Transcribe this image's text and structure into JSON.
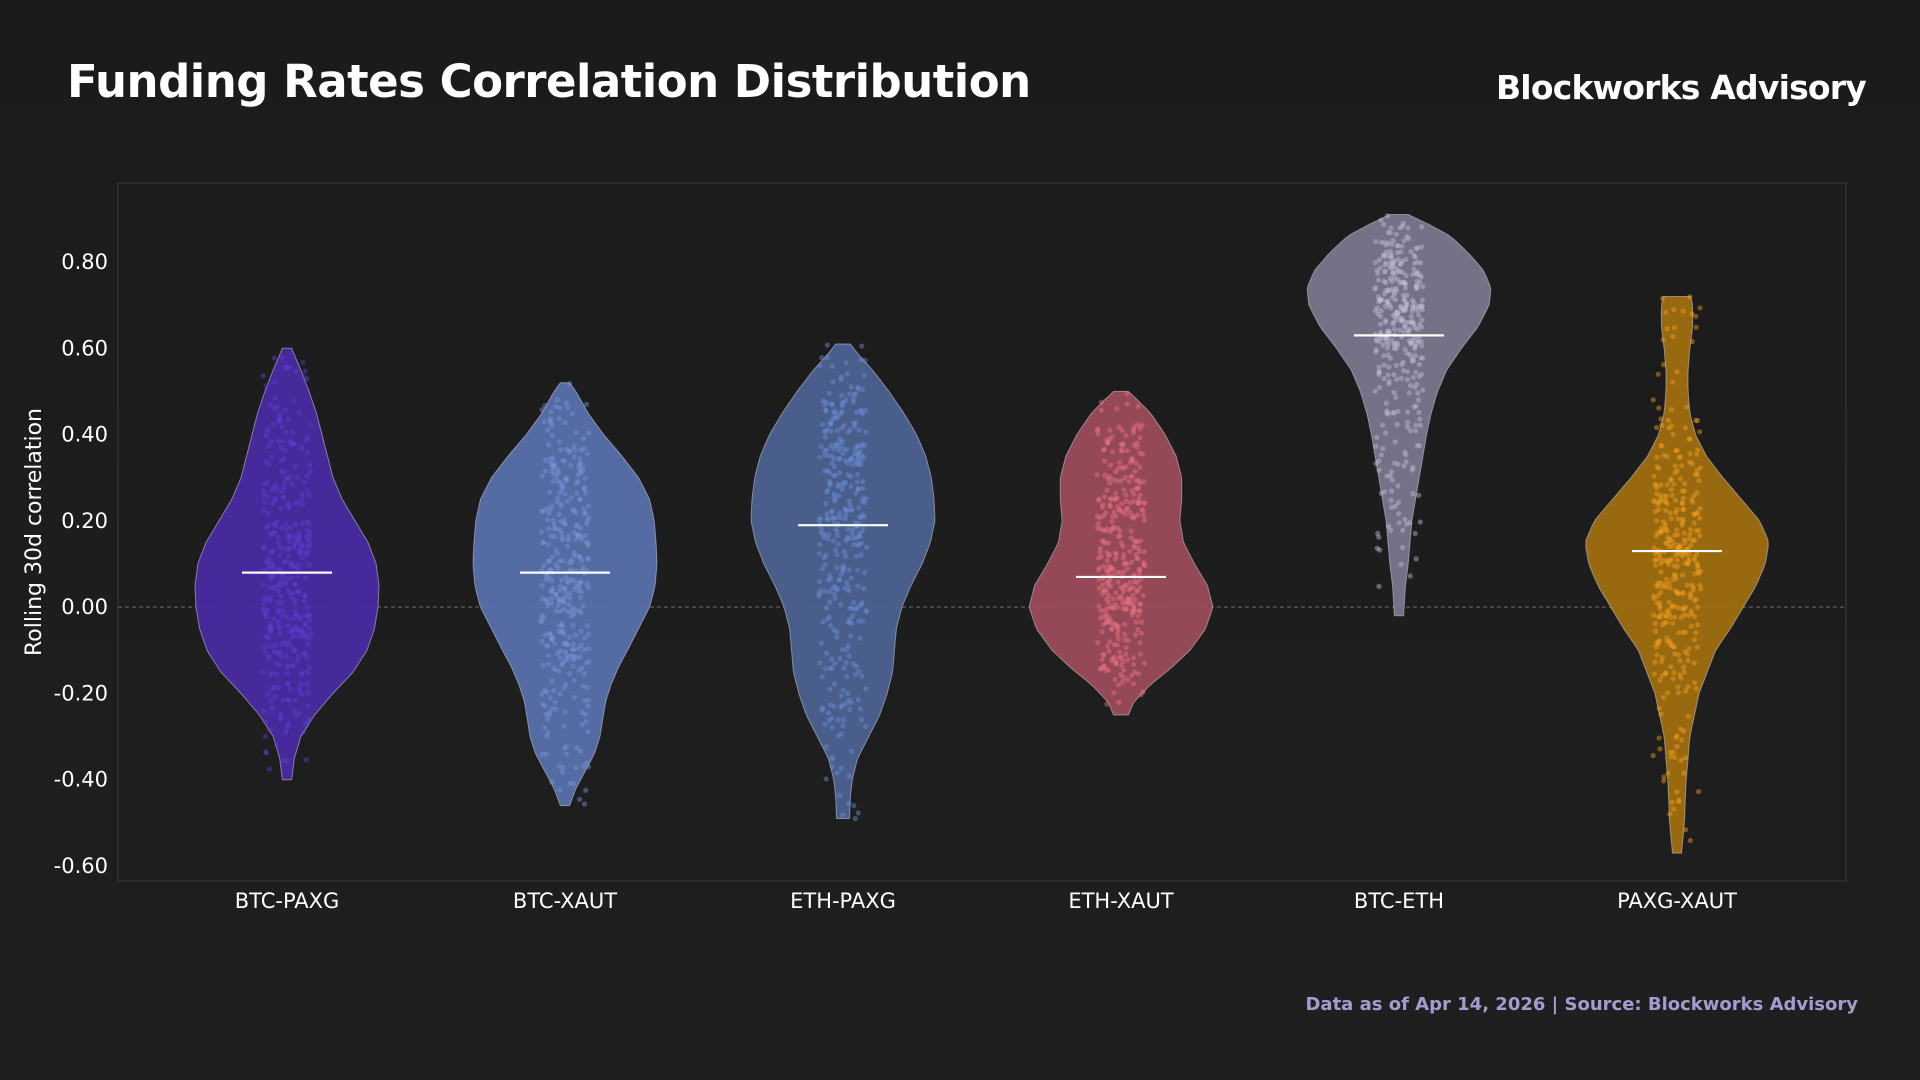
{
  "header": {
    "title": "Funding Rates Correlation Distribution",
    "brand": "Blockworks Advisory"
  },
  "footer": {
    "source": "Data as of Apr 14, 2026 | Source: Blockworks Advisory"
  },
  "chart_data": {
    "type": "violin",
    "title": "Funding Rates Correlation Distribution",
    "xlabel": "",
    "ylabel": "Rolling 30d correlation",
    "ylim": [
      -0.64,
      0.98
    ],
    "yticks": [
      0.8,
      0.6,
      0.4,
      0.2,
      0.0,
      -0.2,
      -0.4,
      -0.6
    ],
    "ytick_labels": [
      "0.80",
      "0.60",
      "0.40",
      "0.20",
      "0.00",
      "-0.20",
      "-0.40",
      "-0.60"
    ],
    "reference_line": 0.0,
    "categories": [
      "BTC-PAXG",
      "BTC-XAUT",
      "ETH-PAXG",
      "ETH-XAUT",
      "BTC-ETH",
      "PAXG-XAUT"
    ],
    "series": [
      {
        "name": "BTC-PAXG",
        "color": "#4a2ba6",
        "point_color": "#5a3fd0",
        "min": -0.4,
        "max": 0.6,
        "median": 0.08,
        "density": [
          [
            -0.4,
            0.05
          ],
          [
            -0.35,
            0.08
          ],
          [
            -0.3,
            0.15
          ],
          [
            -0.25,
            0.3
          ],
          [
            -0.2,
            0.5
          ],
          [
            -0.15,
            0.72
          ],
          [
            -0.1,
            0.87
          ],
          [
            -0.05,
            0.95
          ],
          [
            0.0,
            0.99
          ],
          [
            0.05,
            1.0
          ],
          [
            0.1,
            0.97
          ],
          [
            0.15,
            0.88
          ],
          [
            0.2,
            0.74
          ],
          [
            0.25,
            0.6
          ],
          [
            0.3,
            0.5
          ],
          [
            0.35,
            0.44
          ],
          [
            0.4,
            0.38
          ],
          [
            0.45,
            0.32
          ],
          [
            0.5,
            0.24
          ],
          [
            0.55,
            0.15
          ],
          [
            0.6,
            0.05
          ]
        ]
      },
      {
        "name": "BTC-XAUT",
        "color": "#5a72b0",
        "point_color": "#7896d8",
        "min": -0.46,
        "max": 0.52,
        "median": 0.08,
        "density": [
          [
            -0.46,
            0.05
          ],
          [
            -0.42,
            0.12
          ],
          [
            -0.38,
            0.22
          ],
          [
            -0.34,
            0.32
          ],
          [
            -0.3,
            0.38
          ],
          [
            -0.26,
            0.41
          ],
          [
            -0.22,
            0.44
          ],
          [
            -0.18,
            0.5
          ],
          [
            -0.14,
            0.58
          ],
          [
            -0.1,
            0.68
          ],
          [
            -0.05,
            0.8
          ],
          [
            0.0,
            0.92
          ],
          [
            0.05,
            0.98
          ],
          [
            0.1,
            1.0
          ],
          [
            0.15,
            0.99
          ],
          [
            0.2,
            0.97
          ],
          [
            0.25,
            0.92
          ],
          [
            0.3,
            0.8
          ],
          [
            0.35,
            0.62
          ],
          [
            0.4,
            0.42
          ],
          [
            0.45,
            0.25
          ],
          [
            0.5,
            0.12
          ],
          [
            0.52,
            0.05
          ]
        ]
      },
      {
        "name": "ETH-PAXG",
        "color": "#4e6496",
        "point_color": "#6a8fd8",
        "min": -0.49,
        "max": 0.61,
        "median": 0.19,
        "density": [
          [
            -0.49,
            0.07
          ],
          [
            -0.44,
            0.08
          ],
          [
            -0.4,
            0.1
          ],
          [
            -0.35,
            0.16
          ],
          [
            -0.3,
            0.28
          ],
          [
            -0.25,
            0.4
          ],
          [
            -0.2,
            0.48
          ],
          [
            -0.15,
            0.54
          ],
          [
            -0.1,
            0.56
          ],
          [
            -0.05,
            0.58
          ],
          [
            0.0,
            0.64
          ],
          [
            0.05,
            0.74
          ],
          [
            0.1,
            0.86
          ],
          [
            0.15,
            0.95
          ],
          [
            0.2,
            1.0
          ],
          [
            0.25,
            0.99
          ],
          [
            0.3,
            0.96
          ],
          [
            0.35,
            0.9
          ],
          [
            0.4,
            0.8
          ],
          [
            0.45,
            0.66
          ],
          [
            0.5,
            0.5
          ],
          [
            0.55,
            0.32
          ],
          [
            0.59,
            0.15
          ],
          [
            0.61,
            0.08
          ]
        ]
      },
      {
        "name": "ETH-XAUT",
        "color": "#a04d5c",
        "point_color": "#e87086",
        "min": -0.25,
        "max": 0.5,
        "median": 0.07,
        "density": [
          [
            -0.25,
            0.08
          ],
          [
            -0.22,
            0.14
          ],
          [
            -0.18,
            0.32
          ],
          [
            -0.14,
            0.55
          ],
          [
            -0.1,
            0.75
          ],
          [
            -0.05,
            0.92
          ],
          [
            0.0,
            1.0
          ],
          [
            0.05,
            0.94
          ],
          [
            0.1,
            0.8
          ],
          [
            0.15,
            0.68
          ],
          [
            0.2,
            0.64
          ],
          [
            0.25,
            0.66
          ],
          [
            0.3,
            0.66
          ],
          [
            0.35,
            0.6
          ],
          [
            0.4,
            0.48
          ],
          [
            0.45,
            0.32
          ],
          [
            0.48,
            0.18
          ],
          [
            0.5,
            0.08
          ]
        ]
      },
      {
        "name": "BTC-ETH",
        "color": "#7d7890",
        "point_color": "#c4bdd8",
        "min": -0.02,
        "max": 0.91,
        "median": 0.63,
        "density": [
          [
            -0.02,
            0.05
          ],
          [
            0.05,
            0.07
          ],
          [
            0.1,
            0.1
          ],
          [
            0.15,
            0.12
          ],
          [
            0.2,
            0.14
          ],
          [
            0.25,
            0.18
          ],
          [
            0.3,
            0.22
          ],
          [
            0.35,
            0.26
          ],
          [
            0.4,
            0.3
          ],
          [
            0.45,
            0.35
          ],
          [
            0.5,
            0.42
          ],
          [
            0.55,
            0.52
          ],
          [
            0.6,
            0.68
          ],
          [
            0.65,
            0.86
          ],
          [
            0.7,
            0.98
          ],
          [
            0.74,
            1.0
          ],
          [
            0.78,
            0.92
          ],
          [
            0.82,
            0.76
          ],
          [
            0.86,
            0.56
          ],
          [
            0.89,
            0.3
          ],
          [
            0.91,
            0.1
          ]
        ]
      },
      {
        "name": "PAXG-XAUT",
        "color": "#a4700f",
        "point_color": "#f0a020",
        "min": -0.57,
        "max": 0.72,
        "median": 0.13,
        "density": [
          [
            -0.57,
            0.05
          ],
          [
            -0.5,
            0.08
          ],
          [
            -0.4,
            0.1
          ],
          [
            -0.3,
            0.14
          ],
          [
            -0.2,
            0.24
          ],
          [
            -0.1,
            0.42
          ],
          [
            -0.05,
            0.58
          ],
          [
            0.0,
            0.72
          ],
          [
            0.05,
            0.86
          ],
          [
            0.1,
            0.96
          ],
          [
            0.15,
            1.0
          ],
          [
            0.2,
            0.9
          ],
          [
            0.25,
            0.7
          ],
          [
            0.3,
            0.5
          ],
          [
            0.35,
            0.32
          ],
          [
            0.4,
            0.2
          ],
          [
            0.45,
            0.14
          ],
          [
            0.5,
            0.12
          ],
          [
            0.55,
            0.12
          ],
          [
            0.6,
            0.14
          ],
          [
            0.65,
            0.17
          ],
          [
            0.7,
            0.17
          ],
          [
            0.72,
            0.15
          ]
        ]
      }
    ]
  }
}
